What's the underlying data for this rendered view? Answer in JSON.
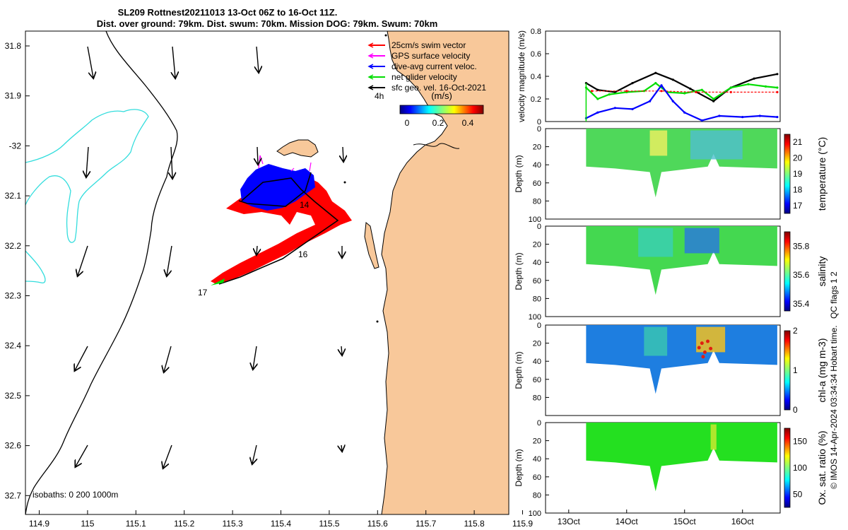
{
  "title": {
    "line1": "SL209 Rottnest20211013 13-Oct 06Z to 16-Oct 11Z.",
    "line2": "Dist. over ground: 79km. Dist. swum: 70km. Mission DOG: 79km. Swum: 70km"
  },
  "map": {
    "lon_ticks": [
      "114.9",
      "115",
      "115.1",
      "115.2",
      "115.3",
      "115.4",
      "115.5",
      "115.6",
      "115.7",
      "115.8",
      "115.9"
    ],
    "lat_ticks": [
      "31.8",
      "31.9",
      "-32",
      "32.1",
      "32.2",
      "32.3",
      "32.4",
      "32.5",
      "32.6",
      "32.7"
    ],
    "legend": [
      {
        "label": "25cm/s swim vector",
        "color": "#ff0000"
      },
      {
        "label": "GPS surface velocity",
        "color": "#ff00ff"
      },
      {
        "label": "dive-avg current veloc.",
        "color": "#0000ff"
      },
      {
        "label": "net glider velocity",
        "color": "#00dd00"
      },
      {
        "label": "sfc geo. vel. 16-Oct-2021",
        "color": "#000000"
      }
    ],
    "legend_scale_label": "4h",
    "colorbar_title": "(m/s)",
    "colorbar_ticks": [
      "0",
      "0.2",
      "0.4"
    ],
    "track_labels": [
      "14",
      "16",
      "17"
    ],
    "isobaths_label": "isobaths: 0   200  1000m",
    "colors": {
      "land": "#f8c89a",
      "coast": "#000000",
      "isobath_200": "#000000",
      "isobath_1000": "#33dddd"
    }
  },
  "chart_data": [
    {
      "type": "line",
      "ylabel": "velocity magnitude (m/s)",
      "ylim": [
        0,
        0.8
      ],
      "yticks": [
        "0",
        "0.2",
        "0.4",
        "0.6",
        "0.8"
      ],
      "series": [
        {
          "color": "#000000",
          "x": [
            13.3,
            13.5,
            13.8,
            14.1,
            14.5,
            14.8,
            15.1,
            15.5,
            15.8,
            16.2,
            16.6
          ],
          "values": [
            0.34,
            0.28,
            0.26,
            0.34,
            0.43,
            0.37,
            0.29,
            0.18,
            0.3,
            0.38,
            0.42
          ]
        },
        {
          "color": "#00dd00",
          "x": [
            13.3,
            13.5,
            13.7,
            14.0,
            14.3,
            14.5,
            14.7,
            15.0,
            15.3,
            15.5,
            15.8,
            16.1,
            16.4,
            16.6
          ],
          "values": [
            0.3,
            0.2,
            0.24,
            0.26,
            0.27,
            0.34,
            0.26,
            0.25,
            0.28,
            0.2,
            0.3,
            0.33,
            0.31,
            0.3
          ]
        },
        {
          "color": "#ff0000",
          "x": [
            13.4,
            14.0,
            14.6,
            15.2,
            15.8,
            16.6
          ],
          "values": [
            0.27,
            0.27,
            0.27,
            0.26,
            0.26,
            0.26
          ]
        },
        {
          "color": "#0000ff",
          "x": [
            13.3,
            13.5,
            13.8,
            14.1,
            14.4,
            14.6,
            14.8,
            15.0,
            15.3,
            15.6,
            16.0,
            16.3,
            16.6
          ],
          "values": [
            0.03,
            0.08,
            0.12,
            0.11,
            0.18,
            0.32,
            0.18,
            0.08,
            0.01,
            0.05,
            0.04,
            0.05,
            0.04
          ]
        }
      ]
    },
    {
      "type": "heatmap",
      "ylabel": "Depth (m)",
      "yticks": [
        "0",
        "20",
        "40",
        "60",
        "80",
        "100"
      ],
      "colorbar_label": "temperature (°C)",
      "colorbar_ticks": [
        "17",
        "18",
        "19",
        "20",
        "21"
      ],
      "clim": [
        16.5,
        21.5
      ]
    },
    {
      "type": "heatmap",
      "ylabel": "Depth (m)",
      "yticks": [
        "0",
        "20",
        "40",
        "60",
        "80",
        "100"
      ],
      "colorbar_label": "salinity",
      "colorbar_ticks": [
        "35.4",
        "35.6",
        "35.8"
      ],
      "clim": [
        35.35,
        35.9
      ]
    },
    {
      "type": "heatmap",
      "ylabel": "Depth (m)",
      "yticks": [
        "0",
        "20",
        "40",
        "60",
        "80"
      ],
      "colorbar_label": "chl-a (mg m-3)",
      "colorbar_ticks": [
        "0",
        "1",
        "2"
      ],
      "clim": [
        0,
        2
      ]
    },
    {
      "type": "heatmap",
      "ylabel": "Depth (m)",
      "yticks": [
        "0",
        "20",
        "40",
        "60",
        "80",
        "100"
      ],
      "colorbar_label": "Ox. sat. ratio (%)",
      "colorbar_ticks": [
        "50",
        "100",
        "150"
      ],
      "clim": [
        25,
        175
      ]
    }
  ],
  "time_axis": {
    "ticks": [
      "13Oct",
      "14Oct",
      "15Oct",
      "16Oct"
    ]
  },
  "qc_label": "QC flags 1  2",
  "credit": "© IMOS 14-Apr-2024 03:34:34 Hobart time."
}
